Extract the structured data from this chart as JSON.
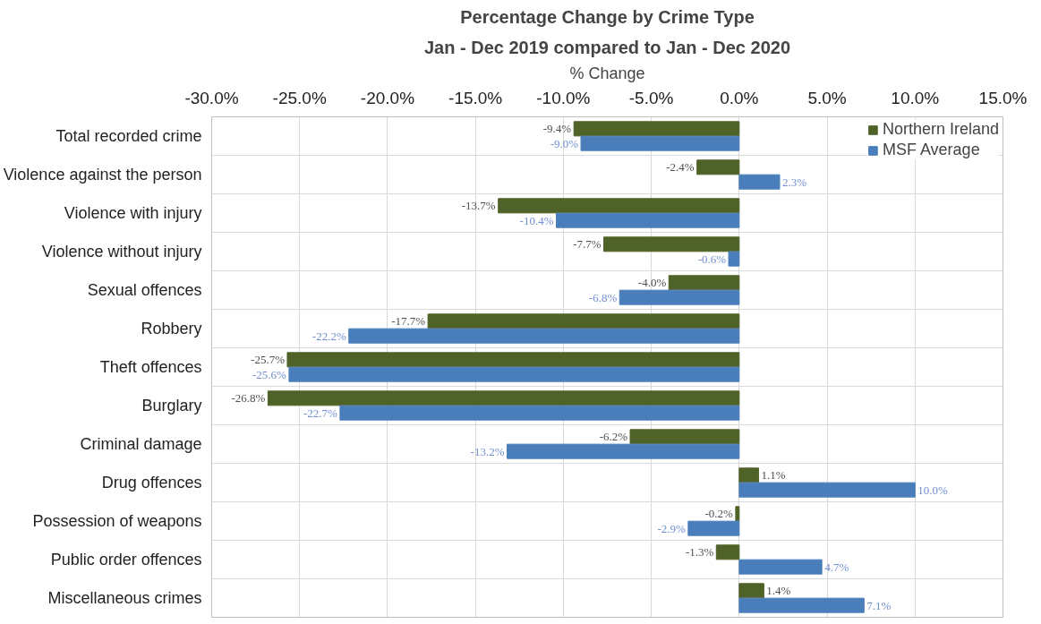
{
  "chart_data": {
    "type": "bar",
    "orientation": "horizontal",
    "title": "Percentage Change by Crime Type",
    "subtitle": "Jan - Dec 2019 compared to Jan - Dec 2020",
    "xlabel": "% Change",
    "categories": [
      "Total recorded crime",
      "Violence against the person",
      "Violence with injury",
      "Violence without injury",
      "Sexual offences",
      "Robbery",
      "Theft offences",
      "Burglary",
      "Criminal damage",
      "Drug offences",
      "Possession of weapons",
      "Public order offences",
      "Miscellaneous crimes"
    ],
    "series": [
      {
        "name": "Northern Ireland",
        "color": "#4f6228",
        "values": [
          -9.4,
          -2.4,
          -13.7,
          -7.7,
          -4.0,
          -17.7,
          -25.7,
          -26.8,
          -6.2,
          1.1,
          -0.2,
          -1.3,
          1.4
        ],
        "value_labels": [
          "-9.4%",
          "-2.4%",
          "-13.7%",
          "-7.7%",
          "-4.0%",
          "-17.7%",
          "-25.7%",
          "-26.8%",
          "-6.2%",
          "1.1%",
          "-0.2%",
          "-1.3%",
          "1.4%"
        ]
      },
      {
        "name": "MSF Average",
        "color": "#4a7ebb",
        "values": [
          -9.0,
          2.3,
          -10.4,
          -0.6,
          -6.8,
          -22.2,
          -25.6,
          -22.7,
          -13.2,
          10.0,
          -2.9,
          4.7,
          7.1
        ],
        "value_labels": [
          "-9.0%",
          "2.3%",
          "-10.4%",
          "-0.6%",
          "-6.8%",
          "-22.2%",
          "-25.6%",
          "-22.7%",
          "-13.2%",
          "10.0%",
          "-2.9%",
          "4.7%",
          "7.1%"
        ]
      }
    ],
    "xlim": [
      -30,
      15
    ],
    "xticks": [
      {
        "value": -30,
        "label": "-30.0%"
      },
      {
        "value": -25,
        "label": "-25.0%"
      },
      {
        "value": -20,
        "label": "-20.0%"
      },
      {
        "value": -15,
        "label": "-15.0%"
      },
      {
        "value": -10,
        "label": "-10.0%"
      },
      {
        "value": -5,
        "label": "-5.0%"
      },
      {
        "value": 0,
        "label": "0.0%"
      },
      {
        "value": 5,
        "label": "5.0%"
      },
      {
        "value": 10,
        "label": "10.0%"
      },
      {
        "value": 15,
        "label": "15.0%"
      }
    ],
    "grid": true,
    "legend": "top right"
  }
}
